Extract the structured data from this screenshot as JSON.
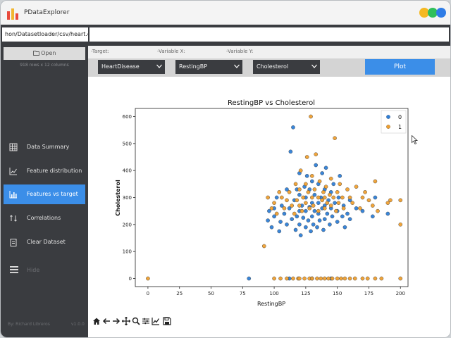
{
  "app": {
    "title": "PDataExplorer"
  },
  "colors": {
    "accent": "#3b8ee8",
    "sidebar": "#3a3c40",
    "class0": "#2f7fd7",
    "class1": "#f0a030"
  },
  "path": {
    "value": "hon/Datasetloader/csv/heart.csv"
  },
  "sidebar": {
    "open_label": "Open",
    "row_count": "918 rows x 12 columns",
    "items": [
      {
        "label": "Data Summary",
        "icon": "table-icon"
      },
      {
        "label": "Feature distribution",
        "icon": "line-chart-icon"
      },
      {
        "label": "Features vs target",
        "icon": "bar-chart-icon",
        "active": true
      },
      {
        "label": "Correlations",
        "icon": "arrows-icon"
      },
      {
        "label": "Clear Dataset",
        "icon": "clipboard-icon"
      }
    ],
    "hide_label": "Hide",
    "author": "By: Richard Libreros",
    "version": "v1.0.0"
  },
  "controls": {
    "target_label": "-Target:",
    "x_label": "-Variable X:",
    "y_label": "-Variable Y:",
    "target_value": "HeartDisease",
    "x_value": "RestingBP",
    "y_value": "Cholesterol",
    "plot_label": "Plot"
  },
  "chart_data": {
    "type": "scatter",
    "title": "RestingBP vs Cholesterol",
    "xlabel": "RestingBP",
    "ylabel": "Cholesterol",
    "xlim": [
      -10,
      206
    ],
    "ylim": [
      -30,
      630
    ],
    "xticks": [
      0,
      25,
      50,
      75,
      100,
      125,
      150,
      175,
      200
    ],
    "yticks": [
      0,
      100,
      200,
      300,
      400,
      500,
      600
    ],
    "legend_position": "top-right",
    "grid": false,
    "series": [
      {
        "name": "0",
        "color": "#2f7fd7",
        "points": [
          [
            80,
            0
          ],
          [
            95,
            215
          ],
          [
            96,
            250
          ],
          [
            98,
            190
          ],
          [
            100,
            230
          ],
          [
            100,
            260
          ],
          [
            102,
            300
          ],
          [
            104,
            175
          ],
          [
            105,
            210
          ],
          [
            106,
            270
          ],
          [
            108,
            240
          ],
          [
            110,
            200
          ],
          [
            110,
            330
          ],
          [
            112,
            260
          ],
          [
            113,
            470
          ],
          [
            114,
            220
          ],
          [
            115,
            560
          ],
          [
            116,
            290
          ],
          [
            117,
            180
          ],
          [
            118,
            230
          ],
          [
            118,
            330
          ],
          [
            120,
            200
          ],
          [
            120,
            250
          ],
          [
            120,
            310
          ],
          [
            120,
            390
          ],
          [
            121,
            160
          ],
          [
            122,
            270
          ],
          [
            123,
            225
          ],
          [
            124,
            340
          ],
          [
            125,
            190
          ],
          [
            125,
            250
          ],
          [
            125,
            300
          ],
          [
            126,
            380
          ],
          [
            127,
            215
          ],
          [
            128,
            265
          ],
          [
            128,
            330
          ],
          [
            129,
            175
          ],
          [
            130,
            230
          ],
          [
            130,
            280
          ],
          [
            130,
            360
          ],
          [
            131,
            200
          ],
          [
            132,
            250
          ],
          [
            132,
            310
          ],
          [
            133,
            420
          ],
          [
            134,
            190
          ],
          [
            135,
            240
          ],
          [
            135,
            280
          ],
          [
            135,
            350
          ],
          [
            136,
            215
          ],
          [
            137,
            300
          ],
          [
            138,
            260
          ],
          [
            138,
            390
          ],
          [
            139,
            180
          ],
          [
            140,
            220
          ],
          [
            140,
            270
          ],
          [
            140,
            330
          ],
          [
            141,
            410
          ],
          [
            142,
            240
          ],
          [
            143,
            290
          ],
          [
            144,
            200
          ],
          [
            145,
            260
          ],
          [
            145,
            320
          ],
          [
            146,
            230
          ],
          [
            147,
            350
          ],
          [
            148,
            280
          ],
          [
            150,
            210
          ],
          [
            150,
            250
          ],
          [
            151,
            300
          ],
          [
            152,
            380
          ],
          [
            154,
            230
          ],
          [
            155,
            270
          ],
          [
            156,
            190
          ],
          [
            158,
            240
          ],
          [
            160,
            290
          ],
          [
            160,
            220
          ],
          [
            165,
            260
          ],
          [
            170,
            250
          ],
          [
            178,
            230
          ],
          [
            180,
            300
          ],
          [
            190,
            240
          ],
          [
            112,
            0
          ],
          [
            130,
            0
          ],
          [
            145,
            0
          ]
        ]
      },
      {
        "name": "1",
        "color": "#f0a030",
        "points": [
          [
            0,
            0
          ],
          [
            92,
            120
          ],
          [
            95,
            300
          ],
          [
            98,
            260
          ],
          [
            100,
            280
          ],
          [
            100,
            0
          ],
          [
            102,
            240
          ],
          [
            104,
            320
          ],
          [
            105,
            0
          ],
          [
            106,
            300
          ],
          [
            108,
            260
          ],
          [
            110,
            290
          ],
          [
            110,
            0
          ],
          [
            112,
            320
          ],
          [
            114,
            270
          ],
          [
            115,
            0
          ],
          [
            116,
            240
          ],
          [
            117,
            350
          ],
          [
            118,
            290
          ],
          [
            119,
            0
          ],
          [
            120,
            270
          ],
          [
            120,
            330
          ],
          [
            120,
            0
          ],
          [
            121,
            400
          ],
          [
            122,
            250
          ],
          [
            123,
            300
          ],
          [
            124,
            0
          ],
          [
            125,
            350
          ],
          [
            125,
            280
          ],
          [
            126,
            450
          ],
          [
            127,
            320
          ],
          [
            128,
            0
          ],
          [
            128,
            260
          ],
          [
            129,
            600
          ],
          [
            130,
            300
          ],
          [
            130,
            380
          ],
          [
            130,
            0
          ],
          [
            131,
            270
          ],
          [
            132,
            330
          ],
          [
            133,
            460
          ],
          [
            134,
            0
          ],
          [
            135,
            300
          ],
          [
            135,
            250
          ],
          [
            136,
            360
          ],
          [
            137,
            0
          ],
          [
            138,
            290
          ],
          [
            139,
            320
          ],
          [
            140,
            260
          ],
          [
            140,
            300
          ],
          [
            140,
            0
          ],
          [
            141,
            340
          ],
          [
            142,
            280
          ],
          [
            143,
            0
          ],
          [
            144,
            310
          ],
          [
            145,
            270
          ],
          [
            145,
            370
          ],
          [
            146,
            0
          ],
          [
            147,
            300
          ],
          [
            148,
            520
          ],
          [
            149,
            250
          ],
          [
            150,
            320
          ],
          [
            150,
            0
          ],
          [
            151,
            280
          ],
          [
            152,
            350
          ],
          [
            153,
            0
          ],
          [
            154,
            300
          ],
          [
            155,
            260
          ],
          [
            156,
            0
          ],
          [
            158,
            330
          ],
          [
            160,
            300
          ],
          [
            160,
            0
          ],
          [
            162,
            280
          ],
          [
            164,
            0
          ],
          [
            165,
            340
          ],
          [
            168,
            260
          ],
          [
            170,
            300
          ],
          [
            170,
            0
          ],
          [
            172,
            320
          ],
          [
            174,
            0
          ],
          [
            175,
            290
          ],
          [
            178,
            270
          ],
          [
            180,
            360
          ],
          [
            180,
            0
          ],
          [
            182,
            250
          ],
          [
            185,
            0
          ],
          [
            190,
            280
          ],
          [
            192,
            290
          ],
          [
            200,
            290
          ],
          [
            200,
            200
          ],
          [
            200,
            0
          ]
        ]
      }
    ]
  },
  "toolbar": {
    "icons": [
      "home-icon",
      "back-icon",
      "forward-icon",
      "pan-icon",
      "zoom-icon",
      "configure-icon",
      "edit-axis-icon",
      "save-icon"
    ]
  }
}
